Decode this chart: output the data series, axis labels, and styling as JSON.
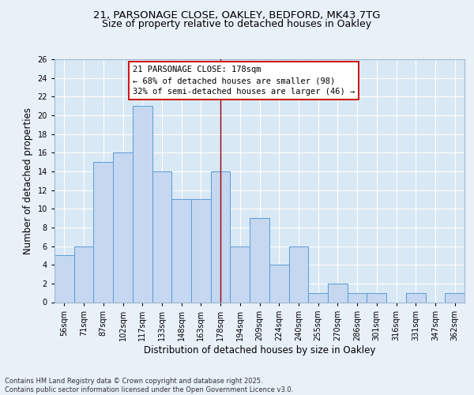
{
  "title_line1": "21, PARSONAGE CLOSE, OAKLEY, BEDFORD, MK43 7TG",
  "title_line2": "Size of property relative to detached houses in Oakley",
  "xlabel": "Distribution of detached houses by size in Oakley",
  "ylabel": "Number of detached properties",
  "bar_values": [
    5,
    6,
    15,
    16,
    21,
    14,
    11,
    11,
    14,
    6,
    9,
    4,
    6,
    1,
    2,
    1,
    1,
    0,
    1,
    0,
    1
  ],
  "bin_labels": [
    "56sqm",
    "71sqm",
    "87sqm",
    "102sqm",
    "117sqm",
    "133sqm",
    "148sqm",
    "163sqm",
    "178sqm",
    "194sqm",
    "209sqm",
    "224sqm",
    "240sqm",
    "255sqm",
    "270sqm",
    "286sqm",
    "301sqm",
    "316sqm",
    "331sqm",
    "347sqm",
    "362sqm"
  ],
  "bar_color": "#c5d8f0",
  "bar_edge_color": "#5b9bd5",
  "highlight_bin_index": 8,
  "vline_color": "#990000",
  "annotation_text": "21 PARSONAGE CLOSE: 178sqm\n← 68% of detached houses are smaller (98)\n32% of semi-detached houses are larger (46) →",
  "annotation_box_color": "#ffffff",
  "annotation_box_edge_color": "#cc0000",
  "ylim": [
    0,
    26
  ],
  "yticks": [
    0,
    2,
    4,
    6,
    8,
    10,
    12,
    14,
    16,
    18,
    20,
    22,
    24,
    26
  ],
  "bg_color": "#e8f0f8",
  "plot_bg_color": "#d8e8f5",
  "footer_text": "Contains HM Land Registry data © Crown copyright and database right 2025.\nContains public sector information licensed under the Open Government Licence v3.0.",
  "title_fontsize": 9.5,
  "axis_label_fontsize": 8.5,
  "tick_fontsize": 7,
  "annotation_fontsize": 7.5
}
